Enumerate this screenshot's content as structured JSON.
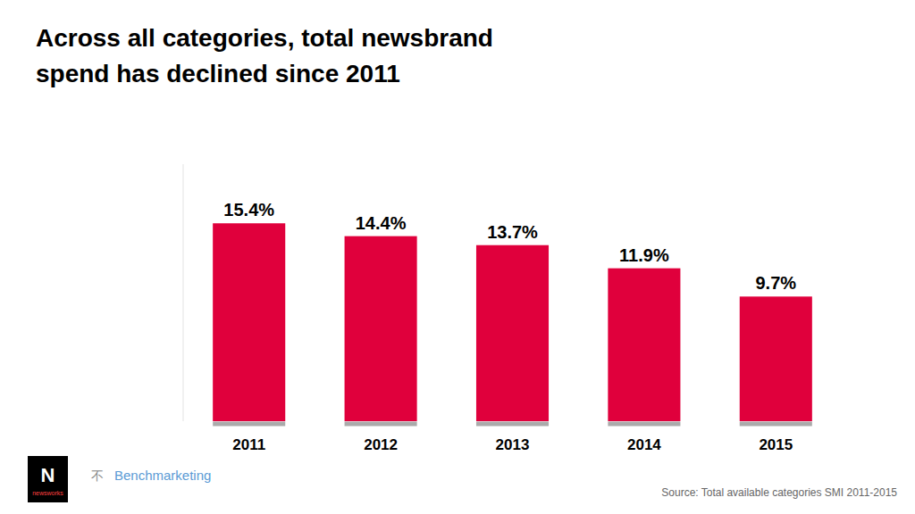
{
  "chart_data": {
    "type": "bar",
    "title": "Across all categories, total newsbrand\nspend has declined since 2011",
    "categories": [
      "2011",
      "2012",
      "2013",
      "2014",
      "2015"
    ],
    "values": [
      15.4,
      14.4,
      13.7,
      11.9,
      9.7
    ],
    "value_labels": [
      "15.4%",
      "14.4%",
      "13.7%",
      "11.9%",
      "9.7%"
    ],
    "data_labels": true,
    "color": "#E0003C",
    "ylim": [
      0,
      20
    ],
    "grid": false,
    "tick_labels": "x",
    "annotations": [
      "Source: Total available categories SMI 2011-2015",
      "N",
      "newsworks",
      "不",
      "Benchmarketing"
    ]
  }
}
